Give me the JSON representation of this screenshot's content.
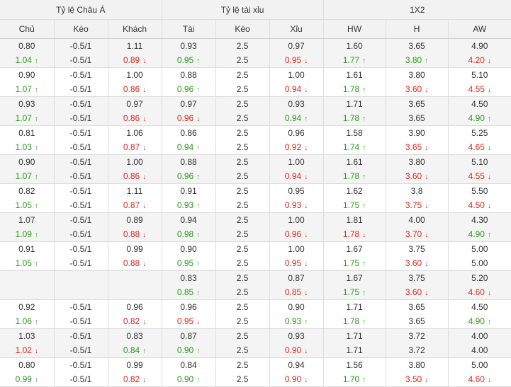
{
  "header": {
    "groups": [
      "Tỷ lệ Châu Á",
      "Tỷ lệ tài xỉu",
      "1X2"
    ],
    "columns": [
      "Chủ",
      "Kèo",
      "Khách",
      "Tài",
      "Kèo",
      "Xỉu",
      "HW",
      "H",
      "AW"
    ]
  },
  "arrows": {
    "up": "↑",
    "down": "↓"
  },
  "colors": {
    "up": "#2e9a1f",
    "down": "#e0281c",
    "header_bg": "#f2f2f2",
    "alt_row_bg": "#f4f4f4"
  },
  "rows": [
    [
      [
        "0.80",
        "1.04|up"
      ],
      [
        "-0.5/1",
        "-0.5/1"
      ],
      [
        "1.11",
        "0.89|down"
      ],
      [
        "0.93",
        "0.95|up"
      ],
      [
        "2.5",
        "2.5"
      ],
      [
        "0.97",
        "0.95|down"
      ],
      [
        "1.60",
        "1.77|up"
      ],
      [
        "3.65",
        "3.80|up"
      ],
      [
        "4.90",
        "4.20|down"
      ]
    ],
    [
      [
        "0.90",
        "1.07|up"
      ],
      [
        "-0.5/1",
        "-0.5/1"
      ],
      [
        "1.00",
        "0.86|down"
      ],
      [
        "0.88",
        "0.96|up"
      ],
      [
        "2.5",
        "2.5"
      ],
      [
        "1.00",
        "0.94|down"
      ],
      [
        "1.61",
        "1.78|up"
      ],
      [
        "3.80",
        "3.60|down"
      ],
      [
        "5.10",
        "4.55|down"
      ]
    ],
    [
      [
        "0.93",
        "1.07|up"
      ],
      [
        "-0.5/1",
        "-0.5/1"
      ],
      [
        "0.97",
        "0.86|down"
      ],
      [
        "0.97",
        "0.96|down"
      ],
      [
        "2.5",
        "2.5"
      ],
      [
        "0.93",
        "0.94|up"
      ],
      [
        "1.71",
        "1.78|up"
      ],
      [
        "3.65",
        "3.65"
      ],
      [
        "4.50",
        "4.90|up"
      ]
    ],
    [
      [
        "0.81",
        "1.03|up"
      ],
      [
        "-0.5/1",
        "-0.5/1"
      ],
      [
        "1.06",
        "0.87|down"
      ],
      [
        "0.86",
        "0.94|up"
      ],
      [
        "2.5",
        "2.5"
      ],
      [
        "0.96",
        "0.92|down"
      ],
      [
        "1.58",
        "1.74|up"
      ],
      [
        "3.90",
        "3.65|down"
      ],
      [
        "5.25",
        "4.65|down"
      ]
    ],
    [
      [
        "0.90",
        "1.07|up"
      ],
      [
        "-0.5/1",
        "-0.5/1"
      ],
      [
        "1.00",
        "0.86|down"
      ],
      [
        "0.88",
        "0.96|up"
      ],
      [
        "2.5",
        "2.5"
      ],
      [
        "1.00",
        "0.94|down"
      ],
      [
        "1.61",
        "1.78|up"
      ],
      [
        "3.80",
        "3.60|down"
      ],
      [
        "5.10",
        "4.55|down"
      ]
    ],
    [
      [
        "0.82",
        "1.05|up"
      ],
      [
        "-0.5/1",
        "-0.5/1"
      ],
      [
        "1.11",
        "0.87|down"
      ],
      [
        "0.91",
        "0.93|up"
      ],
      [
        "2.5",
        "2.5"
      ],
      [
        "0.95",
        "0.93|down"
      ],
      [
        "1.62",
        "1.75|up"
      ],
      [
        "3.8",
        "3.75|down"
      ],
      [
        "5.50",
        "4.50|down"
      ]
    ],
    [
      [
        "1.07",
        "1.09|up"
      ],
      [
        "-0.5/1",
        "-0.5/1"
      ],
      [
        "0.89",
        "0.88|down"
      ],
      [
        "0.94",
        "0.98|up"
      ],
      [
        "2.5",
        "2.5"
      ],
      [
        "1.00",
        "0.96|down"
      ],
      [
        "1.81",
        "1.78|down"
      ],
      [
        "4.00",
        "3.70|down"
      ],
      [
        "4.30",
        "4.90|up"
      ]
    ],
    [
      [
        "0.91",
        "1.05|up"
      ],
      [
        "-0.5/1",
        "-0.5/1"
      ],
      [
        "0.99",
        "0.88|down"
      ],
      [
        "0.90",
        "0.95|up"
      ],
      [
        "2.5",
        "2.5"
      ],
      [
        "1.00",
        "0.95|down"
      ],
      [
        "1.67",
        "1.75|up"
      ],
      [
        "3.75",
        "3.60|down"
      ],
      [
        "5.00",
        "5.00"
      ]
    ],
    [
      [
        "",
        ""
      ],
      [
        "",
        ""
      ],
      [
        "",
        ""
      ],
      [
        "0.83",
        "0.85|up"
      ],
      [
        "2.5",
        "2.5"
      ],
      [
        "0.87",
        "0.85|down"
      ],
      [
        "1.67",
        "1.75|up"
      ],
      [
        "3.75",
        "3.60|down"
      ],
      [
        "5.20",
        "4.60|down"
      ]
    ],
    [
      [
        "0.92",
        "1.06|up"
      ],
      [
        "-0.5/1",
        "-0.5/1"
      ],
      [
        "0.96",
        "0.82|down"
      ],
      [
        "0.96",
        "0.95|down"
      ],
      [
        "2.5",
        "2.5"
      ],
      [
        "0.90",
        "0.93|up"
      ],
      [
        "1.71",
        "1.78|up"
      ],
      [
        "3.65",
        "3.65"
      ],
      [
        "4.50",
        "4.90|up"
      ]
    ],
    [
      [
        "1.03",
        "1.02|down"
      ],
      [
        "-0.5/1",
        "-0.5/1"
      ],
      [
        "0.83",
        "0.84|up"
      ],
      [
        "0.87",
        "0.90|up"
      ],
      [
        "2.5",
        "2.5"
      ],
      [
        "0.93",
        "0.90|down"
      ],
      [
        "1.71",
        "1.71"
      ],
      [
        "3.72",
        "3.72"
      ],
      [
        "4.00",
        "4.00"
      ]
    ],
    [
      [
        "0.80",
        "0.99|up"
      ],
      [
        "-0.5/1",
        "-0.5/1"
      ],
      [
        "0.99",
        "0.82|down"
      ],
      [
        "0.84",
        "0.90|up"
      ],
      [
        "2.5",
        "2.5"
      ],
      [
        "0.94",
        "0.90|down"
      ],
      [
        "1.56",
        "1.70|up"
      ],
      [
        "3.80",
        "3.50|down"
      ],
      [
        "5.00",
        "4.60|down"
      ]
    ]
  ]
}
